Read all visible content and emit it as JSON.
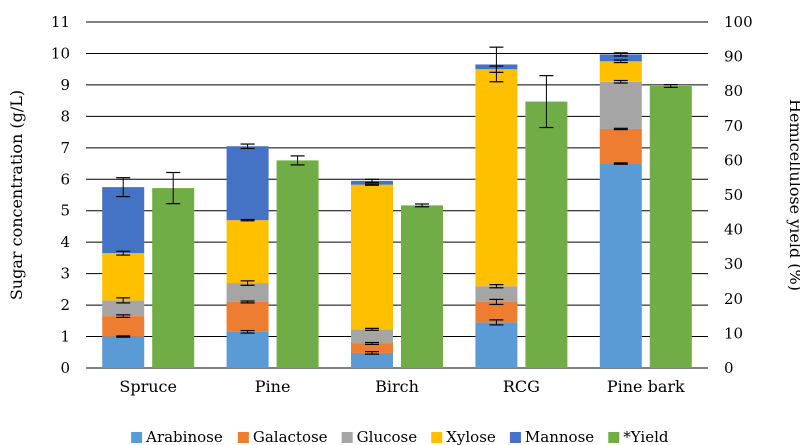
{
  "chart_data": {
    "type": "bar",
    "subtype": "stacked-bar-with-secondary-bar",
    "categories": [
      "Spruce",
      "Pine",
      "Birch",
      "RCG",
      "Pine bark"
    ],
    "ylabel": "Sugar concentration (g/L)",
    "y2label": "Hemicellulose yield (%)",
    "ylim": [
      0,
      11
    ],
    "y2lim": [
      0,
      100
    ],
    "yticks": [
      0,
      1,
      2,
      3,
      4,
      5,
      6,
      7,
      8,
      9,
      10,
      11
    ],
    "y2ticks": [
      0,
      10,
      20,
      30,
      40,
      50,
      60,
      70,
      80,
      90,
      100
    ],
    "grid": "horizontal",
    "legend_position": "bottom",
    "series": [
      {
        "name": "Arabinose",
        "color": "#5B9BD5",
        "axis": "left",
        "values": [
          1.0,
          1.15,
          0.48,
          1.45,
          6.5
        ],
        "errors": [
          0.02,
          0.04,
          0.04,
          0.08,
          0.02
        ]
      },
      {
        "name": "Galactose",
        "color": "#ED7D31",
        "axis": "left",
        "values": [
          0.65,
          0.95,
          0.3,
          0.65,
          1.1
        ],
        "errors": [
          0.04,
          0.03,
          0.03,
          0.08,
          0.02
        ]
      },
      {
        "name": "Glucose",
        "color": "#A5A5A5",
        "axis": "left",
        "values": [
          0.5,
          0.6,
          0.45,
          0.5,
          1.5
        ],
        "errors": [
          0.08,
          0.07,
          0.03,
          0.05,
          0.04
        ]
      },
      {
        "name": "Xylose",
        "color": "#FFC000",
        "axis": "left",
        "values": [
          1.5,
          2.0,
          4.6,
          6.9,
          0.65
        ],
        "errors": [
          0.06,
          0.02,
          0.02,
          0.1,
          0.04
        ]
      },
      {
        "name": "Mannose",
        "color": "#4472C4",
        "axis": "left",
        "values": [
          2.1,
          2.35,
          0.12,
          0.15,
          0.22
        ],
        "errors": [
          0.3,
          0.07,
          0.05,
          0.55,
          0.05
        ]
      },
      {
        "name": "*Yield",
        "color": "#70AD47",
        "axis": "right",
        "values": [
          52,
          60,
          47,
          77,
          81.5
        ],
        "errors": [
          4.5,
          1.3,
          0.4,
          7.5,
          0.4
        ]
      }
    ]
  }
}
